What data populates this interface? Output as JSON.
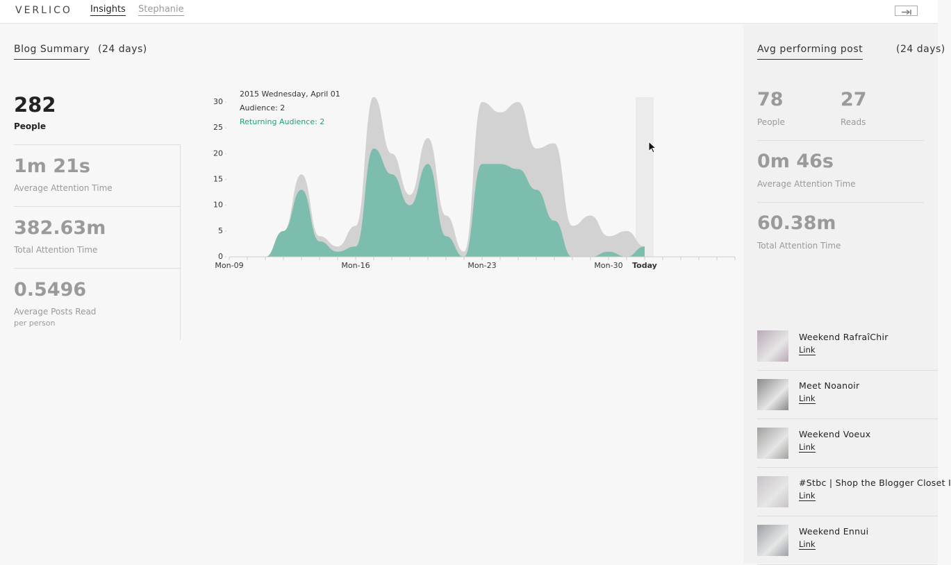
{
  "nav": {
    "logo": "VERLICO",
    "tabs": [
      "Insights",
      "Stephanie"
    ]
  },
  "summary": {
    "title": "Blog Summary",
    "period": "(24 days)",
    "stats": [
      {
        "value": 282,
        "label": "People"
      },
      {
        "value": "1m 21s",
        "label": "Average Attention Time"
      },
      {
        "value": "382.63m",
        "label": "Total Attention Time"
      },
      {
        "value": 0.5496,
        "label": "Average Posts Read",
        "note": "per person"
      }
    ]
  },
  "chart_data": {
    "type": "area",
    "categories": [
      "Mon-09",
      null,
      null,
      null,
      null,
      null,
      null,
      "Mon-16",
      null,
      null,
      null,
      null,
      null,
      null,
      "Mon-23",
      null,
      null,
      null,
      null,
      null,
      null,
      "Mon-30",
      null,
      "Today"
    ],
    "series": [
      {
        "color": "#d2d2d2",
        "values": [
          0,
          0,
          0,
          5,
          16,
          4,
          2,
          6,
          31,
          20,
          12,
          23,
          8,
          1,
          30,
          28,
          30,
          21,
          22,
          6,
          8,
          4,
          5,
          2
        ]
      },
      {
        "color": "#7dbdae",
        "values": [
          0,
          0,
          0,
          5,
          13,
          3,
          1,
          2,
          21,
          16,
          10,
          18,
          4,
          0,
          18,
          18,
          17,
          13,
          7,
          0,
          0,
          1,
          0,
          2
        ]
      }
    ],
    "ylim": [
      0,
      30
    ],
    "yticks": [
      0,
      5,
      10,
      15,
      20,
      25,
      30
    ],
    "tooltip": {
      "date": "2015 Wednesday, April 01",
      "lines": [
        "Audience: 2",
        "Returning Audience: 2"
      ]
    }
  },
  "avg_post": {
    "title": "Avg performing post",
    "period": "(24 days)",
    "stats": [
      {
        "value": 78,
        "label": "People"
      },
      {
        "value": 27,
        "label": "Reads"
      },
      {
        "value": "0m 46s",
        "label": "Average Attention Time"
      },
      {
        "value": "60.38m",
        "label": "Total Attention Time"
      }
    ]
  },
  "posts": [
    {
      "title": "Weekend RafraîChir",
      "link": "Link"
    },
    {
      "title": "Meet Noanoir",
      "link": "Link"
    },
    {
      "title": "Weekend Voeux",
      "link": "Link"
    },
    {
      "title": "#Stbc | Shop the Blogger Closet I",
      "link": "Link"
    },
    {
      "title": "Weekend Ennui",
      "link": "Link"
    }
  ]
}
